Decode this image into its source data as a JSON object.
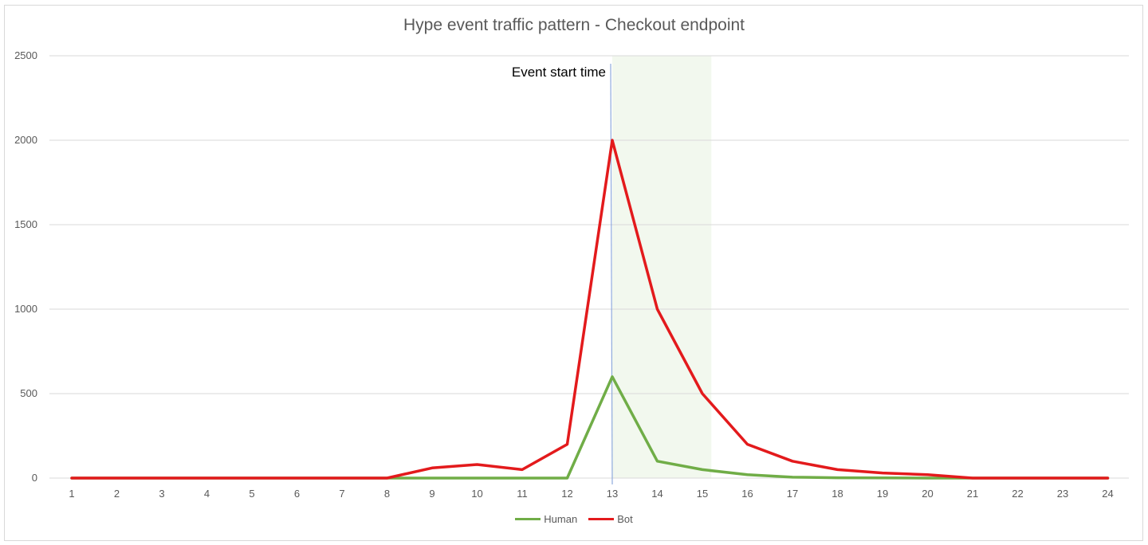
{
  "chart_data": {
    "type": "line",
    "title": "Hype event traffic pattern - Checkout endpoint",
    "xlabel": "",
    "ylabel": "",
    "x": [
      1,
      2,
      3,
      4,
      5,
      6,
      7,
      8,
      9,
      10,
      11,
      12,
      13,
      14,
      15,
      16,
      17,
      18,
      19,
      20,
      21,
      22,
      23,
      24
    ],
    "x_tick_labels": [
      "1",
      "2",
      "3",
      "4",
      "5",
      "6",
      "7",
      "8",
      "9",
      "10",
      "11",
      "12",
      "13",
      "14",
      "15",
      "16",
      "17",
      "18",
      "19",
      "20",
      "21",
      "22",
      "23",
      "24"
    ],
    "y_tick_labels": [
      "0",
      "500",
      "1000",
      "1500",
      "2000",
      "2500"
    ],
    "y_ticks": [
      0,
      500,
      1000,
      1500,
      2000,
      2500
    ],
    "ylim": [
      0,
      2500
    ],
    "grid": true,
    "legend_position": "bottom",
    "series": [
      {
        "name": "Human",
        "color": "#70ad47",
        "values": [
          0,
          0,
          0,
          0,
          0,
          0,
          0,
          0,
          0,
          0,
          0,
          0,
          600,
          100,
          50,
          20,
          5,
          2,
          1,
          0,
          0,
          0,
          0,
          0
        ]
      },
      {
        "name": "Bot",
        "color": "#e31a1c",
        "values": [
          0,
          0,
          0,
          0,
          0,
          0,
          0,
          0,
          60,
          80,
          50,
          200,
          2000,
          1000,
          500,
          200,
          100,
          50,
          30,
          20,
          0,
          0,
          0,
          0
        ]
      }
    ],
    "annotations": [
      {
        "type": "vertical-line",
        "x": 13,
        "label": "Event start time",
        "color": "#8faadc"
      },
      {
        "type": "shaded-region",
        "x_start": 13,
        "x_end": 15.2,
        "color": "#e2efda"
      }
    ]
  }
}
